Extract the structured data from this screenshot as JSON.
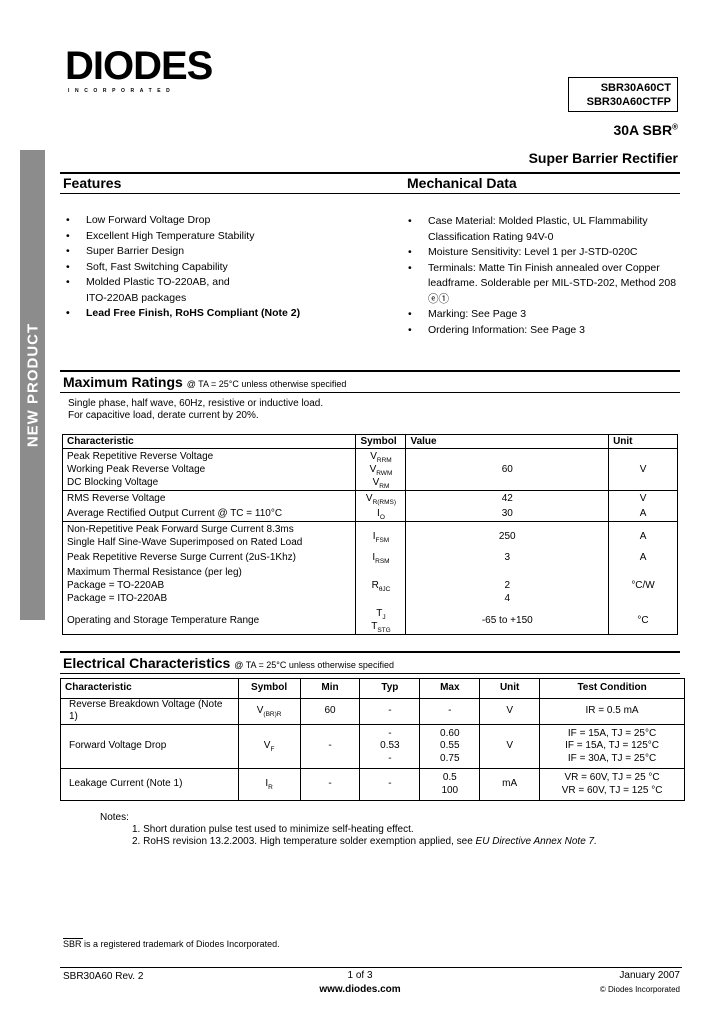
{
  "header": {
    "logo": "DIODES",
    "logo_sub": "INCORPORATED",
    "part_numbers": [
      "SBR30A60CT",
      "SBR30A60CTFP"
    ],
    "title_line1": "30A SBR",
    "title_reg": "®",
    "title_line2": "Super Barrier Rectifier"
  },
  "sidebar_label": "NEW PRODUCT",
  "features": {
    "heading": "Features",
    "items": [
      "Low Forward Voltage Drop",
      "Excellent High Temperature Stability",
      "Super Barrier Design",
      "Soft, Fast Switching Capability",
      "Molded Plastic TO-220AB, and ITO-220AB packages",
      "Lead Free Finish, RoHS Compliant (Note 2)"
    ]
  },
  "mechanical": {
    "heading": "Mechanical Data",
    "items": [
      "Case Material:  Molded Plastic, UL Flammability Classification Rating 94V-0",
      "Moisture Sensitivity: Level 1 per J-STD-020C",
      "Terminals: Matte Tin Finish annealed over Copper leadframe. Solderable per MIL-STD-202, Method 208 ⓔ①",
      "Marking: See Page 3",
      "Ordering Information: See Page 3"
    ]
  },
  "max_ratings": {
    "heading": "Maximum Ratings",
    "condition": "@ TA = 25°C unless otherwise specified",
    "note1": "Single phase, half wave, 60Hz, resistive or inductive load.",
    "note2": "For capacitive load, derate current by 20%.",
    "columns": [
      "Characteristic",
      "Symbol",
      "Value",
      "Unit"
    ],
    "rows": [
      {
        "char": [
          "Peak Repetitive Reverse Voltage",
          "Working Peak Reverse Voltage",
          "DC Blocking Voltage"
        ],
        "sym": [
          [
            "V",
            "RRM"
          ],
          [
            "V",
            "RWM"
          ],
          [
            "V",
            "RM"
          ]
        ],
        "value": "60",
        "unit": "V"
      },
      {
        "char": [
          "RMS Reverse Voltage"
        ],
        "sym": [
          [
            "V",
            "R(RMS)"
          ]
        ],
        "value": "42",
        "unit": "V"
      },
      {
        "char": [
          "Average Rectified Output Current @ TC = 110°C"
        ],
        "sym": [
          [
            "I",
            "O"
          ]
        ],
        "value": "30",
        "unit": "A"
      },
      {
        "char": [
          "Non-Repetitive Peak Forward Surge Current 8.3ms",
          "Single Half Sine-Wave Superimposed on Rated Load"
        ],
        "sym": [
          [
            "I",
            "FSM"
          ]
        ],
        "value": "250",
        "unit": "A"
      },
      {
        "char": [
          "Peak Repetitive Reverse Surge Current (2uS-1Khz)"
        ],
        "sym": [
          [
            "I",
            "RSM"
          ]
        ],
        "value": "3",
        "unit": "A"
      },
      {
        "char": [
          "Maximum Thermal Resistance (per leg)",
          "Package = TO-220AB",
          "Package = ITO-220AB"
        ],
        "sym": [
          [
            "R",
            "θJC"
          ]
        ],
        "value": "2",
        "value2": "4",
        "unit": "°C/W"
      },
      {
        "char": [
          "Operating and Storage Temperature Range"
        ],
        "sym": [
          [
            "T",
            "J"
          ],
          [
            "T",
            "STG"
          ]
        ],
        "value": "-65 to +150",
        "unit": "°C"
      }
    ]
  },
  "electrical": {
    "heading": "Electrical Characteristics",
    "condition": "@ TA = 25°C unless otherwise specified",
    "columns": [
      "Characteristic",
      "Symbol",
      "Min",
      "Typ",
      "Max",
      "Unit",
      "Test Condition"
    ],
    "rows": [
      {
        "char": "Reverse Breakdown Voltage (Note 1)",
        "sym": [
          "V",
          "(BR)R"
        ],
        "min": [
          "60"
        ],
        "typ": [
          "-"
        ],
        "max": [
          "-"
        ],
        "unit": "V",
        "cond": [
          "IR = 0.5 mA"
        ]
      },
      {
        "char": "Forward Voltage Drop",
        "sym": [
          "V",
          "F"
        ],
        "min": [
          "-"
        ],
        "typ": [
          "-",
          "0.53",
          "-"
        ],
        "max": [
          "0.60",
          "0.55",
          "0.75"
        ],
        "unit": "V",
        "cond": [
          "IF = 15A, TJ = 25°C",
          "IF = 15A, TJ = 125°C",
          "IF = 30A, TJ = 25°C"
        ]
      },
      {
        "char": "Leakage Current (Note 1)",
        "sym": [
          "I",
          "R"
        ],
        "min": [
          "-"
        ],
        "typ": [
          "-"
        ],
        "max": [
          "0.5",
          "100"
        ],
        "unit": "mA",
        "cond": [
          "VR = 60V, TJ = 25 °C",
          "VR = 60V, TJ = 125 °C"
        ]
      }
    ]
  },
  "notes": {
    "label": "Notes:",
    "items": [
      "1. Short duration pulse test used to minimize self-heating effect.",
      "2. RoHS revision 13.2.2003. High temperature solder exemption applied, see "
    ],
    "note2_italic": "EU Directive Annex Note 7."
  },
  "trademark": "SBR is a registered trademark of Diodes Incorporated.",
  "footer": {
    "doc": "SBR30A60 Rev. 2",
    "page": "1 of 3",
    "url": "www.diodes.com",
    "date": "January 2007",
    "copyright": "© Diodes Incorporated"
  }
}
